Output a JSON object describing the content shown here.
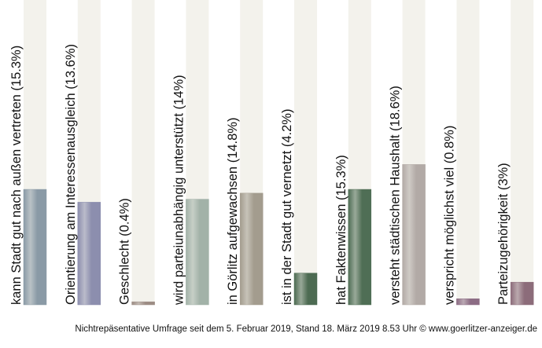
{
  "chart_data": {
    "type": "bar",
    "categories": [
      "kann Stadt gut nach außen vertreten",
      "Orientierung am Interessenausgleich",
      "Geschlecht",
      "wird parteiunabhängig unterstützt",
      "in Görlitz aufgewachsen",
      "ist in der Stadt gut vernetzt",
      "hat Faktenwissen",
      "versteht städtischen Haushalt",
      "verspricht möglichst viel",
      "Parteizugehörigkeit"
    ],
    "values": [
      15.3,
      13.6,
      0.4,
      14,
      14.8,
      4.2,
      15.3,
      18.6,
      0.8,
      3
    ],
    "value_labels": [
      "(15.3%)",
      "(13.6%)",
      "(0.4%)",
      "(14%)",
      "(14.8%)",
      "(4.2%)",
      "(15.3%)",
      "(18.6%)",
      "(0.8%)",
      "(3%)"
    ],
    "colors": [
      "#8a9aa6",
      "#8c8eae",
      "#9c8c84",
      "#a2b2a8",
      "#a39c8e",
      "#4d6b52",
      "#4f6e55",
      "#b2aaa6",
      "#8c6c84",
      "#8c6c7a"
    ],
    "ylim": [
      0,
      40.4
    ],
    "footer": "Nichtrepäsentative Umfrage seit dem 5. Februar 2019, Stand 18. März 2019 8.53 Uhr © www.goerlitzer-anzeiger.de"
  }
}
